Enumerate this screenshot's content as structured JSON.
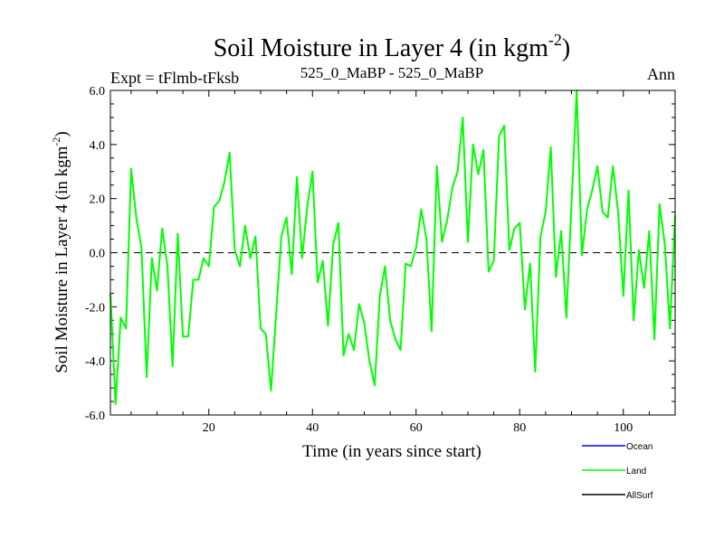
{
  "chart_data": {
    "type": "line",
    "title": "Soil Moisture in Layer 4 (in kgm",
    "title_sup": "-2",
    "title_close": ")",
    "subtitle_left": "Expt = tFlmb-tFksb",
    "subtitle_center": "525_0_MaBP - 525_0_MaBP",
    "subtitle_right": "Ann",
    "xlabel": "Time (in years since start)",
    "ylabel": "Soil Moisture in Layer 4 (in kgm",
    "ylabel_sup": "-2",
    "ylabel_close": ")",
    "xlim": [
      1,
      110
    ],
    "ylim": [
      -6,
      6
    ],
    "x_ticks": [
      20,
      40,
      60,
      80,
      100
    ],
    "x_tick_labels": [
      "20",
      "40",
      "60",
      "80",
      "100"
    ],
    "y_ticks": [
      -6,
      -4,
      -2,
      0,
      2,
      4,
      6
    ],
    "y_tick_labels": [
      "-6.0",
      "-4.0",
      "-2.0",
      "0.0",
      "2.0",
      "4.0",
      "6.0"
    ],
    "zero_line": 0,
    "series": [
      {
        "name": "Ocean",
        "color": "#0000ff",
        "values": []
      },
      {
        "name": "Land",
        "color": "#00ff00",
        "x_start": 1,
        "values": [
          -1.5,
          -5.6,
          -2.4,
          -2.8,
          3.1,
          1.3,
          0.2,
          -4.6,
          -0.2,
          -1.4,
          0.9,
          -0.5,
          -4.2,
          0.7,
          -3.1,
          -3.1,
          -1.0,
          -1.0,
          -0.2,
          -0.5,
          1.7,
          1.9,
          2.6,
          3.7,
          0.1,
          -0.5,
          1.0,
          -0.2,
          0.6,
          -2.8,
          -3.0,
          -5.1,
          -2.2,
          0.6,
          1.3,
          -0.8,
          2.8,
          -0.2,
          1.7,
          3.0,
          -1.1,
          -0.3,
          -2.7,
          0.3,
          1.1,
          -3.8,
          -3.0,
          -3.6,
          -1.9,
          -2.6,
          -4.0,
          -4.9,
          -1.6,
          -0.5,
          -2.5,
          -3.2,
          -3.6,
          -0.4,
          -0.5,
          0.2,
          1.6,
          0.5,
          -2.9,
          3.2,
          0.4,
          1.2,
          2.4,
          3.0,
          5.0,
          0.4,
          4.0,
          2.9,
          3.8,
          -0.7,
          -0.3,
          4.3,
          4.7,
          0.1,
          0.9,
          1.1,
          -2.1,
          -0.4,
          -4.4,
          0.6,
          1.5,
          3.9,
          -0.9,
          0.8,
          -2.4,
          1.8,
          6.0,
          -0.1,
          1.6,
          2.3,
          3.2,
          1.5,
          1.3,
          3.2,
          1.5,
          -1.6,
          2.3,
          -2.5,
          0.1,
          -1.3,
          0.8,
          -3.2,
          1.8,
          0.3,
          -2.8,
          1.4
        ]
      },
      {
        "name": "AllSurf",
        "color": "#000000",
        "values": []
      }
    ],
    "legend": [
      "Ocean",
      "Land",
      "AllSurf"
    ],
    "legend_position": "bottom-right"
  }
}
